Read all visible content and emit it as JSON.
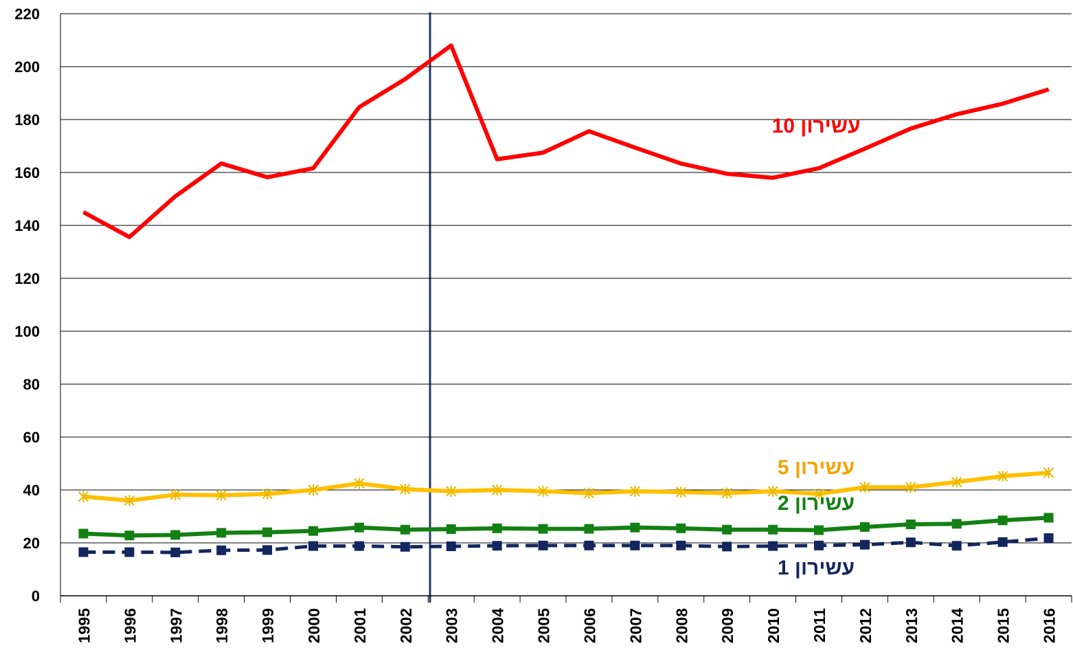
{
  "chart_data": {
    "type": "line",
    "categories": [
      "1995",
      "1996",
      "1997",
      "1998",
      "1999",
      "2000",
      "2001",
      "2002",
      "2003",
      "2004",
      "2005",
      "2006",
      "2007",
      "2008",
      "2009",
      "2010",
      "2011",
      "2012",
      "2013",
      "2014",
      "2015",
      "2016"
    ],
    "series": [
      {
        "name": "עשירון 10",
        "color": "#ff0000",
        "marker": "none",
        "dash": false,
        "values": [
          145,
          135.6,
          151,
          163.4,
          158.2,
          161.6,
          184.7,
          195.3,
          208,
          165,
          167.5,
          175.6,
          169.4,
          163.4,
          159.5,
          158,
          161.6,
          169,
          176.6,
          182,
          186,
          191.4
        ]
      },
      {
        "name": "עשירון 5",
        "color": "#ffc000",
        "label_color": "#f5a300",
        "marker": "x",
        "dash": false,
        "values": [
          37.5,
          36,
          38.2,
          38,
          38.5,
          40,
          42.5,
          40.3,
          39.5,
          40,
          39.5,
          38.8,
          39.5,
          39.2,
          38.8,
          39.5,
          38.5,
          41,
          41,
          43,
          45.2,
          46.5
        ]
      },
      {
        "name": "עשירון 2",
        "color": "#138013",
        "marker": "square",
        "dash": false,
        "values": [
          23.5,
          22.8,
          23,
          23.8,
          24,
          24.5,
          25.8,
          25,
          25.2,
          25.5,
          25.3,
          25.3,
          25.8,
          25.5,
          25,
          25,
          24.8,
          26,
          27,
          27.2,
          28.5,
          29.5
        ]
      },
      {
        "name": "עשירון 1",
        "color": "#13265e",
        "marker": "square",
        "dash": true,
        "values": [
          16.5,
          16.5,
          16.4,
          17.2,
          17.3,
          18.8,
          18.8,
          18.5,
          18.7,
          18.9,
          19,
          19,
          19,
          19,
          18.6,
          18.8,
          19,
          19.3,
          20.2,
          18.9,
          20.3,
          21.8
        ]
      }
    ],
    "ylim": [
      0,
      220
    ],
    "yticks": [
      0,
      20,
      40,
      60,
      80,
      100,
      120,
      140,
      160,
      180,
      200,
      220
    ],
    "grid": true
  }
}
